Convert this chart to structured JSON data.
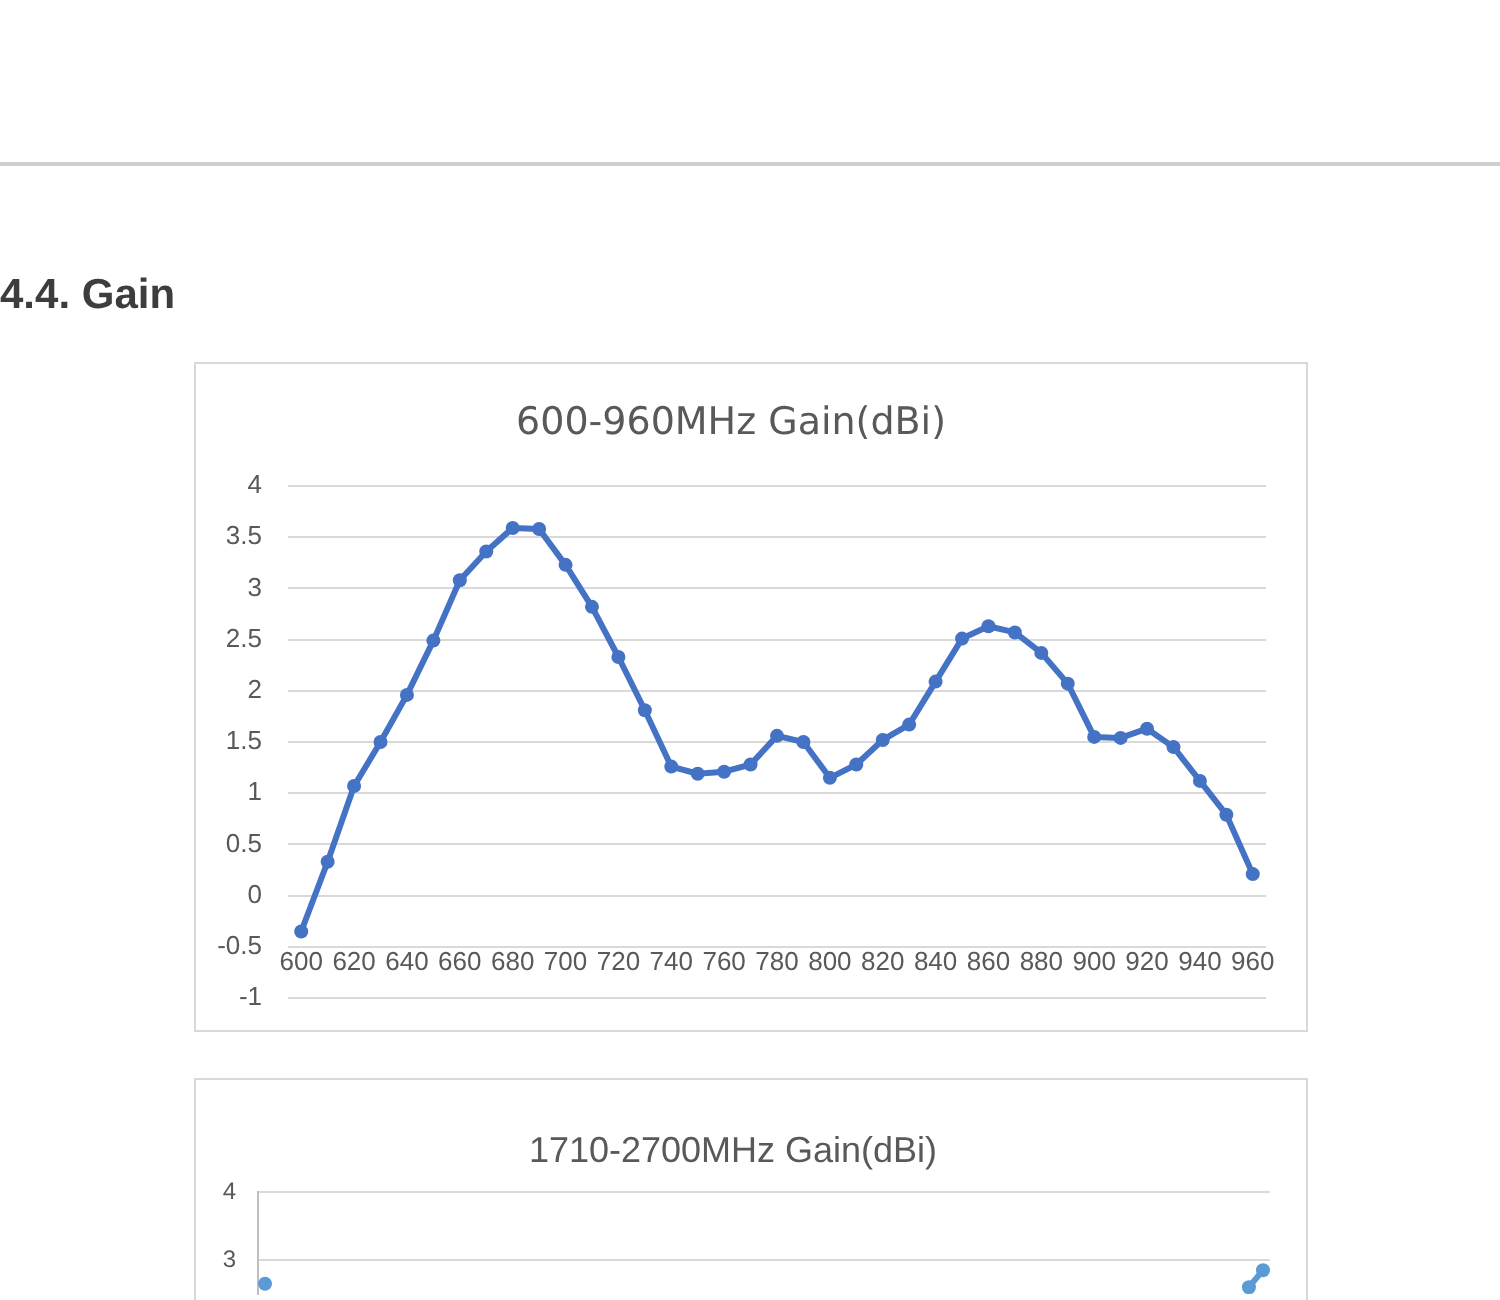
{
  "chart_data": [
    {
      "type": "line",
      "title": "600-960MHz Gain(dBi)",
      "annotations": [
        "4.4. Gain"
      ],
      "categories": [
        "600",
        null,
        "620",
        null,
        "640",
        null,
        "660",
        null,
        "680",
        null,
        "700",
        null,
        "720",
        null,
        "740",
        null,
        "760",
        null,
        "780",
        null,
        "800",
        null,
        "820",
        null,
        "840",
        null,
        "860",
        null,
        "880",
        null,
        "900",
        null,
        "920",
        null,
        "940",
        null,
        "960"
      ],
      "values": [
        -0.35,
        0.33,
        1.07,
        1.5,
        1.96,
        2.49,
        3.08,
        3.36,
        3.59,
        3.58,
        3.23,
        2.82,
        2.33,
        1.81,
        1.26,
        1.19,
        1.21,
        1.28,
        1.56,
        1.5,
        1.15,
        1.28,
        1.52,
        1.67,
        2.09,
        2.51,
        2.63,
        2.57,
        2.37,
        2.07,
        1.55,
        1.54,
        1.63,
        1.45,
        1.12,
        0.79,
        0.21
      ],
      "color": "#4472c4",
      "ylim": [
        -1,
        4
      ],
      "yticks": [
        -1,
        -0.5,
        0,
        0.5,
        1,
        1.5,
        2,
        2.5,
        3,
        3.5,
        4
      ],
      "grid": "y",
      "marker": "circle"
    },
    {
      "type": "line",
      "title": "1710-2700MHz Gain(dBi)",
      "categories": [
        null,
        null,
        null,
        null,
        null,
        null,
        null,
        null,
        null,
        null,
        null,
        null,
        null,
        null,
        null,
        null,
        null,
        null,
        null,
        null,
        null,
        null,
        null,
        null,
        null,
        null,
        null,
        null,
        null,
        null,
        null,
        null,
        null,
        null,
        null,
        null,
        null,
        null,
        null,
        null,
        null,
        null,
        null,
        null,
        null,
        null,
        null,
        null,
        null,
        null,
        null,
        null,
        null,
        null,
        null,
        null,
        null,
        null,
        null,
        null,
        null,
        null,
        null,
        null,
        null,
        null,
        null,
        null,
        null,
        null,
        null,
        null
      ],
      "values": [
        2.65,
        null,
        null,
        null,
        null,
        null,
        null,
        null,
        null,
        null,
        null,
        null,
        null,
        null,
        null,
        null,
        null,
        null,
        null,
        null,
        null,
        null,
        null,
        null,
        null,
        null,
        null,
        null,
        null,
        null,
        null,
        null,
        null,
        null,
        null,
        null,
        null,
        null,
        null,
        null,
        null,
        null,
        null,
        null,
        null,
        null,
        null,
        null,
        null,
        null,
        null,
        null,
        null,
        null,
        null,
        null,
        null,
        null,
        null,
        null,
        null,
        null,
        null,
        null,
        null,
        null,
        null,
        null,
        null,
        null,
        2.6,
        2.85
      ],
      "color": "#5b9bd5",
      "ylim": [
        2.5,
        4
      ],
      "yticks": [
        3,
        4
      ],
      "grid": "y",
      "marker": "circle",
      "tick_labels": "y"
    }
  ]
}
